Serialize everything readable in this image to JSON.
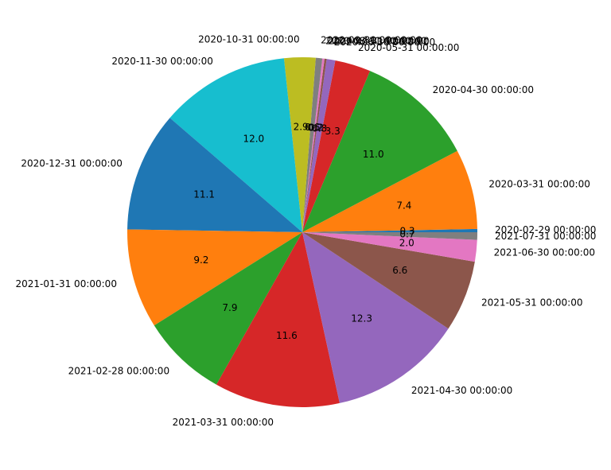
{
  "chart_data": {
    "type": "pie",
    "title": "",
    "startangle": 0,
    "direction": "counterclockwise",
    "center": [
      380,
      292
    ],
    "radius": 220,
    "label_distance": 1.1,
    "pct_distance": 0.6,
    "slices": [
      {
        "label": "2020-02-29 00:00:00",
        "value": 0.3,
        "color": "#1f77b4"
      },
      {
        "label": "2020-03-31 00:00:00",
        "value": 7.4,
        "color": "#ff7f0e"
      },
      {
        "label": "2020-04-30 00:00:00",
        "value": 11.0,
        "color": "#2ca02c"
      },
      {
        "label": "2020-05-31 00:00:00",
        "value": 3.3,
        "color": "#d62728"
      },
      {
        "label": "2020-06-30 00:00:00",
        "value": 0.8,
        "color": "#9467bd"
      },
      {
        "label": "2020-07-31 00:00:00",
        "value": 0.2,
        "color": "#8c564b"
      },
      {
        "label": "2020-08-31 00:00:00",
        "value": 0.2,
        "color": "#e377c2"
      },
      {
        "label": "2020-09-30 00:00:00",
        "value": 0.6,
        "color": "#7f7f7f"
      },
      {
        "label": "2020-10-31 00:00:00",
        "value": 2.9,
        "color": "#bcbd22"
      },
      {
        "label": "2020-11-30 00:00:00",
        "value": 12.0,
        "color": "#17becf"
      },
      {
        "label": "2020-12-31 00:00:00",
        "value": 11.1,
        "color": "#1f77b4"
      },
      {
        "label": "2021-01-31 00:00:00",
        "value": 9.2,
        "color": "#ff7f0e"
      },
      {
        "label": "2021-02-28 00:00:00",
        "value": 7.9,
        "color": "#2ca02c"
      },
      {
        "label": "2021-03-31 00:00:00",
        "value": 11.6,
        "color": "#d62728"
      },
      {
        "label": "2021-04-30 00:00:00",
        "value": 12.3,
        "color": "#9467bd"
      },
      {
        "label": "2021-05-31 00:00:00",
        "value": 6.6,
        "color": "#8c564b"
      },
      {
        "label": "2021-06-30 00:00:00",
        "value": 2.0,
        "color": "#e377c2"
      },
      {
        "label": "2021-07-31 00:00:00",
        "value": 0.7,
        "color": "#7f7f7f"
      }
    ]
  }
}
